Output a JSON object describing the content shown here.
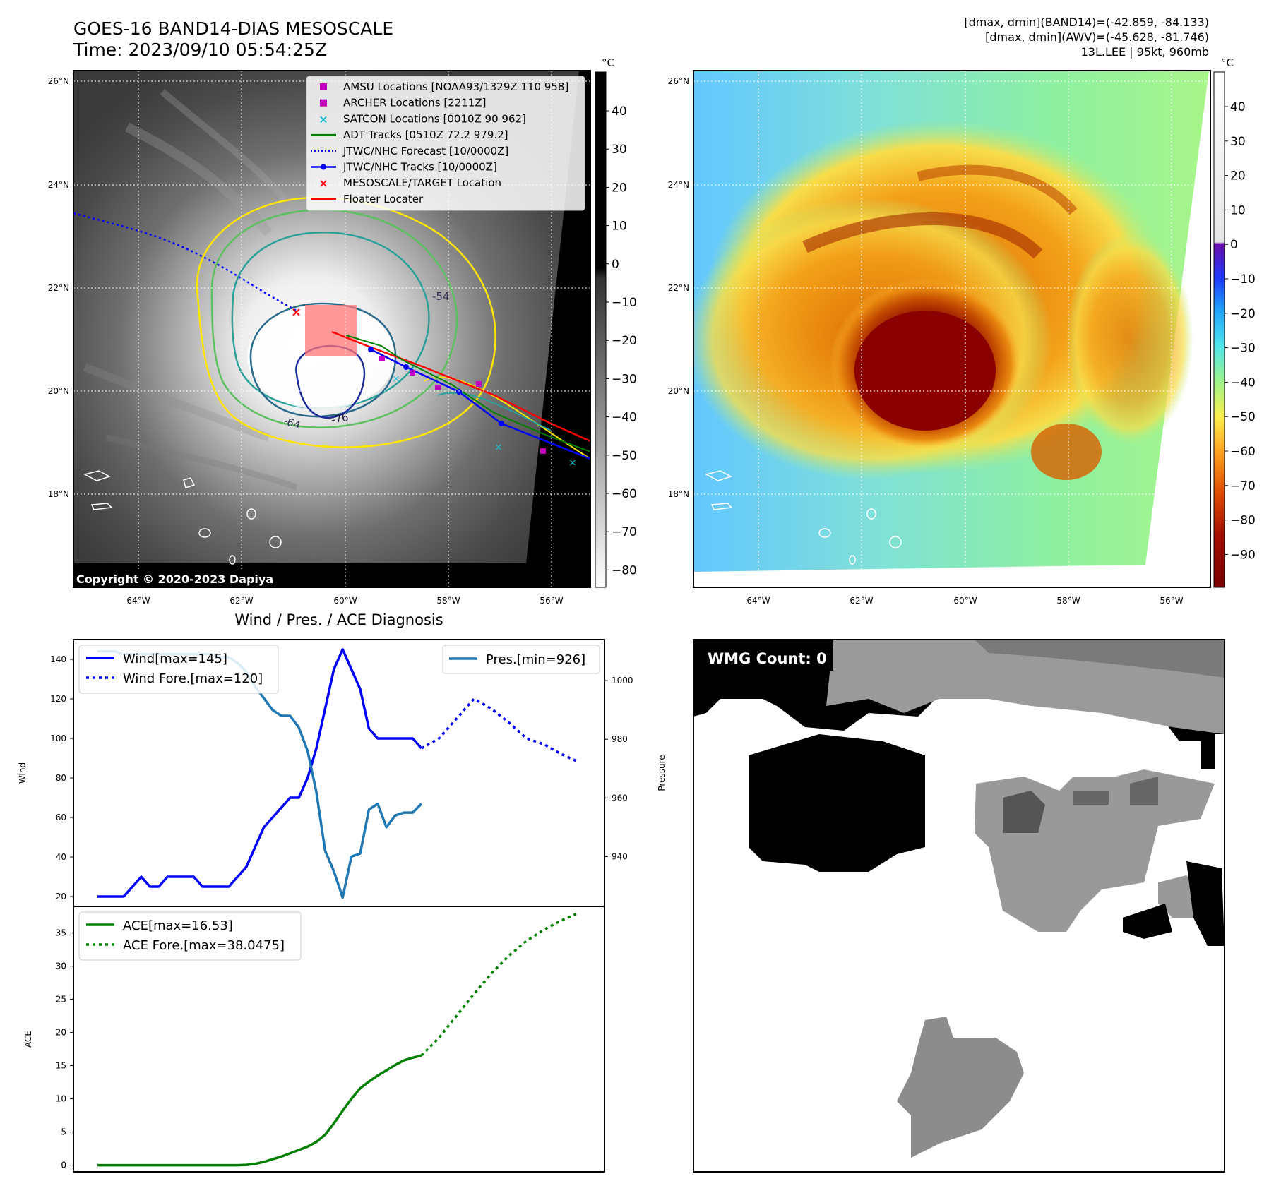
{
  "header": {
    "title_line1": "GOES-16 BAND14-DIAS MESOSCALE",
    "title_line2": "Time: 2023/09/10 05:54:25Z",
    "info_line1": "[dmax, dmin](BAND14)=(-42.859, -84.133)",
    "info_line2": "[dmax, dmin](AWV)=(-45.628, -81.746)",
    "info_line3": "13L.LEE | 95kt, 960mb"
  },
  "maps": {
    "lat_labels": [
      "26°N",
      "24°N",
      "22°N",
      "20°N",
      "18°N"
    ],
    "lon_labels": [
      "64°W",
      "62°W",
      "60°W",
      "58°W",
      "56°W"
    ],
    "copyright": "Copyright © 2020-2023 Dapiya",
    "contour_labels": [
      "-54",
      "-64",
      "-76"
    ],
    "legend": [
      {
        "label": "AMSU Locations [NOAA93/1329Z 110 958]",
        "marker": "square",
        "color": "#c000c0"
      },
      {
        "label": "ARCHER Locations [2211Z]",
        "marker": "square",
        "color": "#c000c0"
      },
      {
        "label": "SATCON Locations [0010Z 90 962]",
        "marker": "x",
        "color": "#17becf"
      },
      {
        "label": "ADT Tracks [0510Z 72.2 979.2]",
        "marker": "line",
        "color": "#008000"
      },
      {
        "label": "JTWC/NHC Forecast [10/0000Z]",
        "marker": "dotted",
        "color": "#0000ff"
      },
      {
        "label": "JTWC/NHC Tracks [10/0000Z]",
        "marker": "line-dot",
        "color": "#0000ff"
      },
      {
        "label": "MESOSCALE/TARGET Location",
        "marker": "x",
        "color": "#ff0000"
      },
      {
        "label": "Floater Locater",
        "marker": "line",
        "color": "#ff0000"
      }
    ],
    "left_colorbar": {
      "unit": "°C",
      "ticks": [
        "40",
        "30",
        "20",
        "10",
        "0",
        "−10",
        "−20",
        "−30",
        "−40",
        "−50",
        "−60",
        "−70",
        "−80"
      ]
    },
    "right_colorbar": {
      "unit": "°C",
      "ticks": [
        "40",
        "30",
        "20",
        "10",
        "0",
        "−10",
        "−20",
        "−30",
        "−40",
        "−50",
        "−60",
        "−70",
        "−80",
        "−90"
      ]
    },
    "colors": {
      "cold_core": "#8b0000",
      "warm": "#ffa500",
      "clear": "#7fd4ff"
    }
  },
  "chart_data": [
    {
      "type": "line",
      "title": "Wind / Pres. / ACE Diagnosis",
      "ylabel": "Wind",
      "ylabel_right": "Pressure",
      "ylim": [
        15,
        150
      ],
      "ylim_right": [
        923,
        1014
      ],
      "xlim": [
        0,
        55
      ],
      "yticks": [
        "140",
        "120",
        "100",
        "80",
        "60",
        "40",
        "20"
      ],
      "yticks_right": [
        "1000",
        "980",
        "960",
        "940"
      ],
      "series": [
        {
          "name": "Wind[max=145]",
          "style": "solid",
          "color": "#0000ff",
          "axis": "left",
          "x": [
            0,
            1,
            2,
            3,
            4,
            5,
            6,
            7,
            8,
            9,
            10,
            11,
            12,
            13,
            14,
            15,
            16,
            17,
            18,
            19,
            20,
            21,
            22,
            23,
            24,
            25,
            26,
            27,
            28,
            29,
            30,
            31,
            32,
            33,
            34,
            35,
            36,
            37
          ],
          "values": [
            20,
            20,
            20,
            20,
            25,
            30,
            25,
            25,
            30,
            30,
            30,
            30,
            25,
            25,
            25,
            25,
            30,
            35,
            45,
            55,
            60,
            65,
            70,
            70,
            80,
            95,
            115,
            135,
            145,
            135,
            125,
            105,
            100,
            100,
            100,
            100,
            100,
            95
          ]
        },
        {
          "name": "Wind Fore.[max=120]",
          "style": "dotted",
          "color": "#0000ff",
          "axis": "left",
          "x": [
            37,
            39,
            41,
            43,
            45,
            47,
            49,
            51,
            53,
            55
          ],
          "values": [
            95,
            100,
            110,
            120,
            115,
            108,
            100,
            97,
            92,
            88
          ]
        },
        {
          "name": "Pres.[min=926]",
          "style": "solid",
          "color": "#1f77b4",
          "axis": "right",
          "x": [
            0,
            1,
            2,
            3,
            4,
            5,
            6,
            7,
            8,
            9,
            10,
            11,
            12,
            13,
            14,
            15,
            16,
            17,
            18,
            19,
            20,
            21,
            22,
            23,
            24,
            25,
            26,
            27,
            28,
            29,
            30,
            31,
            32,
            33,
            34,
            35,
            36,
            37
          ],
          "values": [
            1010,
            1010,
            1010,
            1009,
            1009,
            1009,
            1009,
            1009,
            1009,
            1009,
            1009,
            1009,
            1009,
            1009,
            1008,
            1008,
            1006,
            1003,
            998,
            994,
            990,
            988,
            988,
            984,
            976,
            962,
            942,
            935,
            926,
            940,
            941,
            956,
            958,
            950,
            954,
            955,
            955,
            958
          ]
        }
      ]
    },
    {
      "type": "line",
      "ylabel": "ACE",
      "ylim": [
        -1,
        39
      ],
      "xlim": [
        0,
        55
      ],
      "yticks": [
        "35",
        "30",
        "25",
        "20",
        "15",
        "10",
        "5",
        "0"
      ],
      "series": [
        {
          "name": "ACE[max=16.53]",
          "style": "solid",
          "color": "#008000",
          "x": [
            0,
            2,
            4,
            6,
            8,
            10,
            12,
            14,
            16,
            17,
            18,
            19,
            20,
            21,
            22,
            23,
            24,
            25,
            26,
            27,
            28,
            29,
            30,
            31,
            32,
            33,
            34,
            35,
            36,
            37
          ],
          "values": [
            0,
            0,
            0,
            0,
            0,
            0,
            0,
            0,
            0,
            0.05,
            0.2,
            0.5,
            0.9,
            1.3,
            1.8,
            2.3,
            2.8,
            3.5,
            4.6,
            6.3,
            8.2,
            10,
            11.6,
            12.6,
            13.5,
            14.3,
            15.1,
            15.8,
            16.2,
            16.53
          ]
        },
        {
          "name": "ACE Fore.[max=38.0475]",
          "style": "dotted",
          "color": "#008000",
          "x": [
            37,
            39,
            41,
            43,
            45,
            47,
            49,
            51,
            53,
            55
          ],
          "values": [
            16.53,
            19.2,
            22.5,
            25.8,
            28.9,
            31.6,
            33.8,
            35.5,
            36.9,
            38.05
          ]
        }
      ]
    }
  ],
  "wmg": {
    "label": "WMG Count: 0"
  }
}
